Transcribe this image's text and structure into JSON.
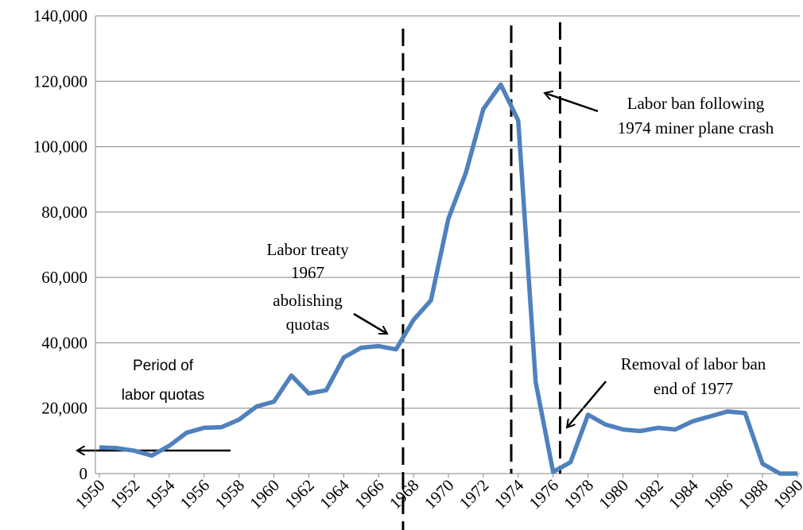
{
  "chart_data": {
    "type": "line",
    "x": [
      1950,
      1951,
      1952,
      1953,
      1954,
      1955,
      1956,
      1957,
      1958,
      1959,
      1960,
      1961,
      1962,
      1963,
      1964,
      1965,
      1966,
      1967,
      1968,
      1969,
      1970,
      1971,
      1972,
      1973,
      1974,
      1975,
      1976,
      1977,
      1978,
      1979,
      1980,
      1981,
      1982,
      1983,
      1984,
      1985,
      1986,
      1987,
      1988,
      1989,
      1990
    ],
    "series": [
      {
        "color": "#4f81bd",
        "values": [
          8000,
          7800,
          7000,
          5500,
          8500,
          12500,
          14000,
          14200,
          16500,
          20500,
          22000,
          30000,
          24500,
          25500,
          35500,
          38500,
          39000,
          38000,
          47000,
          53000,
          78000,
          92000,
          111500,
          119000,
          108000,
          28000,
          500,
          3500,
          18000,
          15000,
          13500,
          13000,
          14000,
          13500,
          16000,
          17500,
          19000,
          18500,
          3000,
          0,
          0
        ]
      }
    ],
    "xlim": [
      1950,
      1990
    ],
    "xticks": [
      1950,
      1952,
      1954,
      1956,
      1958,
      1960,
      1962,
      1964,
      1966,
      1968,
      1970,
      1972,
      1974,
      1976,
      1978,
      1980,
      1982,
      1984,
      1986,
      1988,
      1990
    ],
    "ylim": [
      0,
      140000
    ],
    "yticks": [
      0,
      {
        "value": 20000,
        "label": "20,000"
      },
      {
        "value": 40000,
        "label": "40,000"
      },
      {
        "value": 60000,
        "label": "60,000"
      },
      {
        "value": 80000,
        "label": "80,000"
      },
      {
        "value": 100000,
        "label": "100,000"
      },
      {
        "value": 120000,
        "label": "120,000"
      },
      {
        "value": 140000,
        "label": "140,000"
      }
    ],
    "grid": true,
    "reference_lines": [
      1967.4,
      1973.6,
      1976.4
    ],
    "annotations": [
      {
        "lines": [
          "Period of",
          "labor quotas"
        ]
      },
      {
        "lines": [
          "Labor treaty",
          "1967",
          "abolishing",
          "quotas"
        ]
      },
      {
        "lines": [
          "Labor ban following",
          "1974 miner plane crash"
        ]
      },
      {
        "lines": [
          "Removal of labor ban",
          "end of 1977"
        ]
      }
    ]
  }
}
